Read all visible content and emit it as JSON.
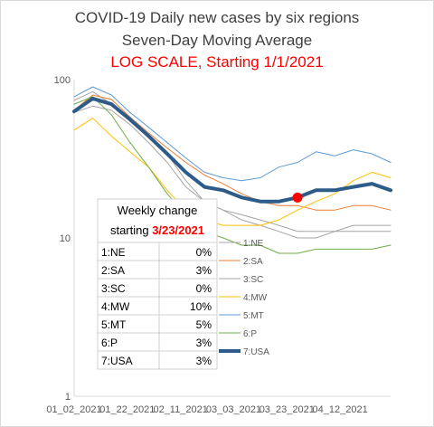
{
  "chart_data": {
    "type": "line",
    "title": "COVID-19 Daily new cases by six regions",
    "subtitle": "Seven-Day Moving Average",
    "subtitle2": "LOG SCALE, Starting 1/1/2021",
    "subtitle2_color": "#ff0000",
    "y_scale": "log",
    "ylim": [
      1,
      100
    ],
    "y_ticks": [
      "1",
      "10",
      "100"
    ],
    "x_ticks": [
      "01_02_2021",
      "01_22_2021",
      "02_11_2021",
      "03_03_2021",
      "03_23_2021",
      "04_12_2021"
    ],
    "grid": false,
    "x": [
      1,
      8,
      15,
      22,
      29,
      36,
      43,
      50,
      57,
      64,
      71,
      78,
      85,
      92,
      99,
      106,
      113,
      120
    ],
    "x_note_start": "01_01_2021",
    "series": [
      {
        "name": "1:NE",
        "color": "#a5a5a5",
        "width": 1,
        "values": [
          74,
          84,
          70,
          55,
          43,
          34,
          23,
          17,
          15,
          14,
          13,
          12,
          11,
          11,
          11,
          12,
          12,
          12
        ]
      },
      {
        "name": "2:SA",
        "color": "#ed7d31",
        "width": 1,
        "values": [
          64,
          80,
          75,
          58,
          46,
          37,
          30,
          25,
          22,
          19,
          17,
          16,
          16,
          15,
          15,
          16,
          16,
          15
        ]
      },
      {
        "name": "3:SC",
        "color": "#a5a5a5",
        "width": 1,
        "values": [
          62,
          68,
          64,
          52,
          40,
          30,
          21,
          17,
          15,
          13,
          12,
          11,
          10,
          10,
          11,
          11,
          11,
          11
        ]
      },
      {
        "name": "4:MW",
        "color": "#ffc000",
        "width": 1,
        "values": [
          48,
          57,
          44,
          35,
          28,
          20,
          15,
          13,
          12,
          12,
          12,
          13,
          15,
          17,
          19,
          23,
          26,
          24
        ]
      },
      {
        "name": "5:MT",
        "color": "#5b9bd5",
        "width": 1,
        "values": [
          78,
          90,
          80,
          62,
          50,
          40,
          32,
          26,
          24,
          23,
          24,
          28,
          30,
          35,
          33,
          36,
          34,
          30
        ]
      },
      {
        "name": "6:P",
        "color": "#70ad47",
        "width": 1,
        "values": [
          70,
          78,
          60,
          40,
          28,
          19,
          14,
          11,
          10,
          9,
          9,
          8,
          8,
          8.5,
          8.5,
          8.5,
          8.5,
          9
        ]
      },
      {
        "name": "7:USA",
        "color": "#2e5c8a",
        "width": 4,
        "values": [
          63,
          76,
          70,
          56,
          44,
          34,
          26,
          21,
          20,
          18,
          17,
          17,
          18,
          20,
          20,
          21,
          22,
          20
        ]
      }
    ],
    "marker": {
      "x": 85,
      "y": 18,
      "color": "#ff0000"
    },
    "weekly_change": {
      "header": "Weekly change",
      "starting_label": "starting",
      "starting_date": "3/23/2021",
      "starting_color": "#ff0000",
      "rows": [
        {
          "region": "1:NE",
          "change": "0%"
        },
        {
          "region": "2:SA",
          "change": "3%"
        },
        {
          "region": "3:SC",
          "change": "0%"
        },
        {
          "region": "4:MW",
          "change": "10%"
        },
        {
          "region": "5:MT",
          "change": "5%"
        },
        {
          "region": "6:P",
          "change": "3%"
        },
        {
          "region": "7:USA",
          "change": "3%"
        }
      ]
    }
  }
}
